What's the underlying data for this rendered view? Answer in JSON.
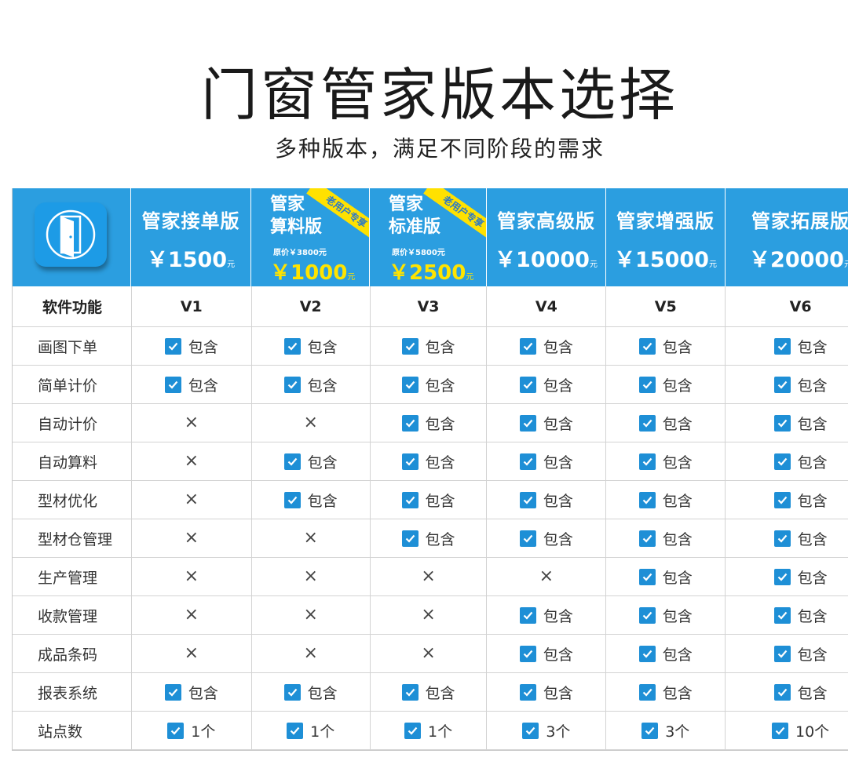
{
  "title": "门窗管家版本选择",
  "subtitle": "多种版本，满足不同阶段的需求",
  "columns": [
    {
      "name": "管家接单版",
      "price": "￥1500",
      "unit": "元",
      "version": "V1"
    },
    {
      "name_line1": "管家",
      "name_line2": "算料版",
      "orig": "原价￥3800元",
      "price": "￥1000",
      "unit": "元",
      "badge": "老用户专享",
      "version": "V2"
    },
    {
      "name_line1": "管家",
      "name_line2": "标准版",
      "orig": "原价￥5800元",
      "price": "￥2500",
      "unit": "元",
      "badge": "老用户专享",
      "version": "V3"
    },
    {
      "name": "管家高级版",
      "price": "￥10000",
      "unit": "元",
      "version": "V4"
    },
    {
      "name": "管家增强版",
      "price": "￥15000",
      "unit": "元",
      "version": "V5"
    },
    {
      "name": "管家拓展版",
      "price": "￥20000",
      "unit": "元",
      "version": "V6"
    }
  ],
  "feature_header": "软件功能",
  "included_text": "包含",
  "rows": [
    {
      "feature": "画图下单",
      "values": [
        "包含",
        "包含",
        "包含",
        "包含",
        "包含",
        "包含"
      ]
    },
    {
      "feature": "简单计价",
      "values": [
        "包含",
        "包含",
        "包含",
        "包含",
        "包含",
        "包含"
      ]
    },
    {
      "feature": "自动计价",
      "values": [
        "×",
        "×",
        "包含",
        "包含",
        "包含",
        "包含"
      ]
    },
    {
      "feature": "自动算料",
      "values": [
        "×",
        "包含",
        "包含",
        "包含",
        "包含",
        "包含"
      ]
    },
    {
      "feature": "型材优化",
      "values": [
        "×",
        "包含",
        "包含",
        "包含",
        "包含",
        "包含"
      ]
    },
    {
      "feature": "型材仓管理",
      "values": [
        "×",
        "×",
        "包含",
        "包含",
        "包含",
        "包含"
      ]
    },
    {
      "feature": "生产管理",
      "values": [
        "×",
        "×",
        "×",
        "×",
        "包含",
        "包含"
      ]
    },
    {
      "feature": "收款管理",
      "values": [
        "×",
        "×",
        "×",
        "包含",
        "包含",
        "包含"
      ]
    },
    {
      "feature": "成品条码",
      "values": [
        "×",
        "×",
        "×",
        "包含",
        "包含",
        "包含"
      ]
    },
    {
      "feature": "报表系统",
      "values": [
        "包含",
        "包含",
        "包含",
        "包含",
        "包含",
        "包含"
      ]
    },
    {
      "feature": "站点数",
      "values": [
        "1个",
        "1个",
        "1个",
        "3个",
        "3个",
        "10个"
      ]
    }
  ],
  "colors": {
    "header_blue": "#2b9ee0",
    "check_blue": "#1e8fd6",
    "sale_yellow": "#ffe400"
  },
  "icons": {
    "logo": "door-icon",
    "check": "checkbox-checked-icon",
    "cross": "cross-icon"
  }
}
